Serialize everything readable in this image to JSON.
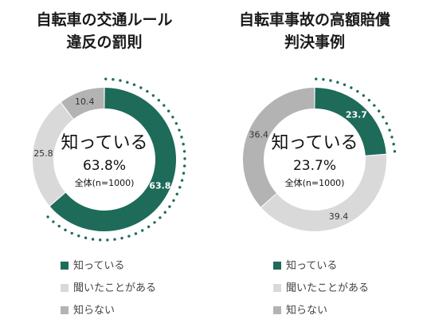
{
  "colors": {
    "know": "#1e6b5a",
    "heard": "#d9d9d9",
    "dontknow": "#b3b3b3",
    "dots": "#1e6b5a"
  },
  "chart_data": [
    {
      "type": "pie",
      "donut": true,
      "title_lines": [
        "自転車の交通ルール",
        "違反の罰則"
      ],
      "categories": [
        "知っている",
        "聞いたことがある",
        "知らない"
      ],
      "values": [
        63.8,
        25.8,
        10.4
      ],
      "value_labels": [
        "63.8",
        "25.8",
        "10.4"
      ],
      "center": {
        "main": "知っている",
        "pct": "63.8%",
        "sub": "全体(n=1000)"
      }
    },
    {
      "type": "pie",
      "donut": true,
      "title_lines": [
        "自転車事故の高額賠償",
        "判決事例"
      ],
      "categories": [
        "知っている",
        "聞いたことがある",
        "知らない"
      ],
      "values": [
        23.7,
        39.4,
        36.4
      ],
      "value_labels": [
        "23.7",
        "39.4",
        "36.4"
      ],
      "center": {
        "main": "知っている",
        "pct": "23.7%",
        "sub": "全体(n=1000)"
      }
    }
  ]
}
